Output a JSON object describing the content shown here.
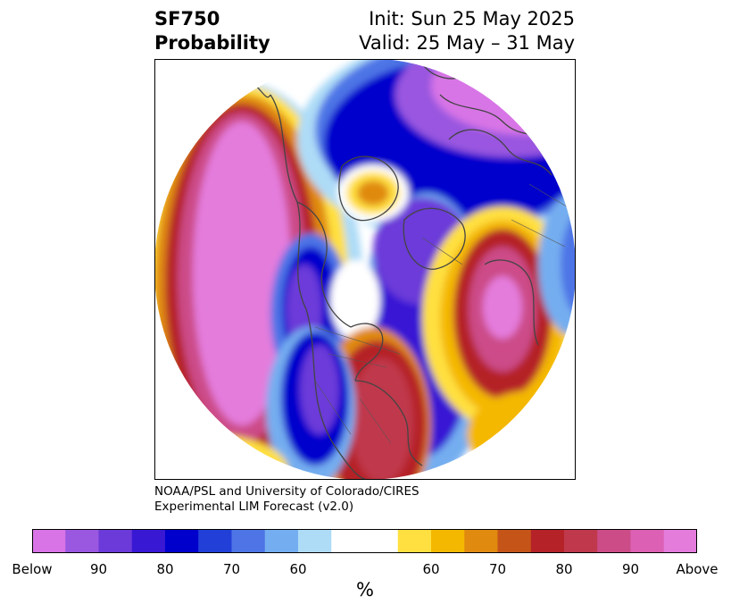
{
  "title": {
    "left_line1": "SF750",
    "left_line2": "Probability",
    "right_line1": "Init: Sun 25 May 2025",
    "right_line2": "Valid: 25 May – 31 May"
  },
  "credit": {
    "line1": "NOAA/PSL and University of Colorado/CIRES",
    "line2": "Experimental LIM Forecast (v2.0)"
  },
  "colorbar": {
    "unit": "%",
    "ticks": [
      "Below",
      "90",
      "80",
      "70",
      "60",
      "60",
      "70",
      "80",
      "90",
      "Above"
    ],
    "colors": [
      "#d874e6",
      "#9a57e0",
      "#6c3ad9",
      "#3918d4",
      "#0000cc",
      "#2240d8",
      "#4e74e6",
      "#74aef0",
      "#aedcf7",
      "#ffffff",
      "#ffffff",
      "#ffe040",
      "#f4b800",
      "#e08a10",
      "#c55418",
      "#b52228",
      "#c0384c",
      "#cc4c88",
      "#dc60b4",
      "#e47cdc"
    ]
  },
  "map": {
    "projection": "north-polar-stereographic",
    "colors": {
      "below_strong": "#0000cc",
      "below_mid": "#4e74e6",
      "below_weak": "#aedcf7",
      "below_extreme": "#b060e0",
      "above_weak": "#ffe040",
      "above_mid": "#e08a10",
      "above_strong": "#b52228",
      "above_extreme": "#e47cdc",
      "coastline": "#444444"
    }
  }
}
